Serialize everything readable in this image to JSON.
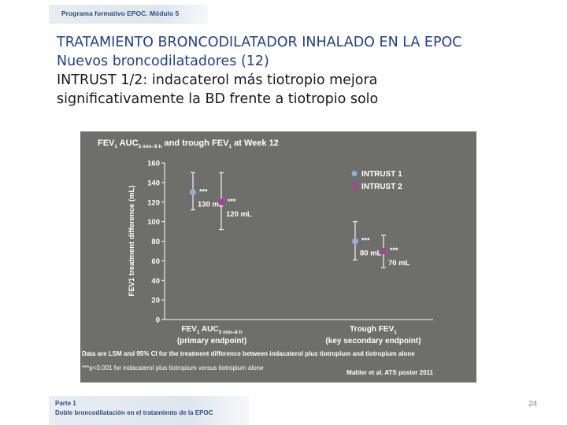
{
  "header": {
    "banner": "Programa formativo EPOC. Módulo 5"
  },
  "title": {
    "line1": "TRATAMIENTO BRONCODILATADOR INHALADO EN LA EPOC",
    "line2": "Nuevos broncodilatadores (12)",
    "line3": "INTRUST 1/2: indacaterol más tiotropio mejora",
    "line4": "significativamente la BD frente a tiotropio solo"
  },
  "footer": {
    "part": "Parte 1",
    "subtitle": "Doble broncodilatación en el tratamiento de la EPOC",
    "page_number": "24"
  },
  "colors": {
    "chart_bg": "#6e6f6b",
    "intrust1": "#8fb0d8",
    "intrust2": "#b03aa8",
    "chart_text": "#ffffff"
  },
  "chart_data": {
    "type": "scatter",
    "title_parts": [
      "FEV",
      "1",
      " AUC",
      "5 min–8 h",
      " and trough FEV",
      "1",
      " at Week 12"
    ],
    "ylabel": "FEV1 treatment difference (mL)",
    "ylim": [
      0,
      160
    ],
    "yticks": [
      0,
      20,
      40,
      60,
      80,
      100,
      120,
      140,
      160
    ],
    "categories": [
      {
        "line1_parts": [
          "FEV",
          "1",
          " AUC",
          "5 min–8 h"
        ],
        "line2": "(primary endpoint)"
      },
      {
        "line1_parts": [
          "Trough FEV",
          "1"
        ],
        "line2": "(key secondary endpoint)"
      }
    ],
    "series": [
      {
        "name": "INTRUST 1",
        "values": [
          130,
          80
        ],
        "ci_low": [
          112,
          61
        ],
        "ci_high": [
          150,
          100
        ],
        "labels": [
          "130 mL",
          "80 mL"
        ],
        "sig": [
          "***",
          "***"
        ]
      },
      {
        "name": "INTRUST 2",
        "values": [
          120,
          70
        ],
        "ci_low": [
          92,
          53
        ],
        "ci_high": [
          150,
          86
        ],
        "labels": [
          "120 mL",
          "70 mL"
        ],
        "sig": [
          "***",
          "***"
        ]
      }
    ],
    "legend_position": "top-right",
    "footnote1": "Data are LSM and 95% CI for the treatment difference between indacaterol plus tiotropium and tiotropium alone",
    "footnote2": "***p<0.001 for indacaterol plus tiotropium versus tiotropium alone",
    "citation": "Mahler et al. ATS poster 2011"
  }
}
